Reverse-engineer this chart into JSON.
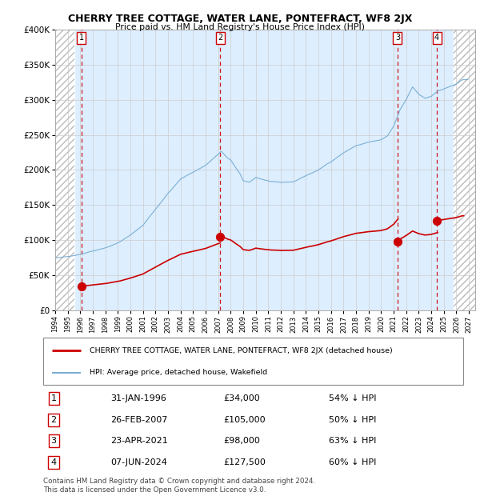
{
  "title": "CHERRY TREE COTTAGE, WATER LANE, PONTEFRACT, WF8 2JX",
  "subtitle": "Price paid vs. HM Land Registry's House Price Index (HPI)",
  "xlim_start": 1994.0,
  "xlim_end": 2027.5,
  "ylim": [
    0,
    400000
  ],
  "yticks": [
    0,
    50000,
    100000,
    150000,
    200000,
    250000,
    300000,
    350000,
    400000
  ],
  "ytick_labels": [
    "£0",
    "£50K",
    "£100K",
    "£150K",
    "£200K",
    "£250K",
    "£300K",
    "£350K",
    "£400K"
  ],
  "sale_dates": [
    1996.08,
    2007.15,
    2021.31,
    2024.44
  ],
  "sale_prices": [
    34000,
    105000,
    98000,
    127500
  ],
  "sale_labels": [
    "1",
    "2",
    "3",
    "4"
  ],
  "hpi_color": "#7bafd4",
  "sale_color": "#cc0000",
  "bg_color": "#ddeeff",
  "legend_property_label": "CHERRY TREE COTTAGE, WATER LANE, PONTEFRACT, WF8 2JX (detached house)",
  "legend_hpi_label": "HPI: Average price, detached house, Wakefield",
  "table_data": [
    [
      "1",
      "31-JAN-1996",
      "£34,000",
      "54% ↓ HPI"
    ],
    [
      "2",
      "26-FEB-2007",
      "£105,000",
      "50% ↓ HPI"
    ],
    [
      "3",
      "23-APR-2021",
      "£98,000",
      "63% ↓ HPI"
    ],
    [
      "4",
      "07-JUN-2024",
      "£127,500",
      "60% ↓ HPI"
    ]
  ],
  "footnote": "Contains HM Land Registry data © Crown copyright and database right 2024.\nThis data is licensed under the Open Government Licence v3.0.",
  "hatch_start": 1994.0,
  "hatch_end1": 1995.5,
  "hatch_start2": 2025.75,
  "hatch_end2": 2027.5
}
